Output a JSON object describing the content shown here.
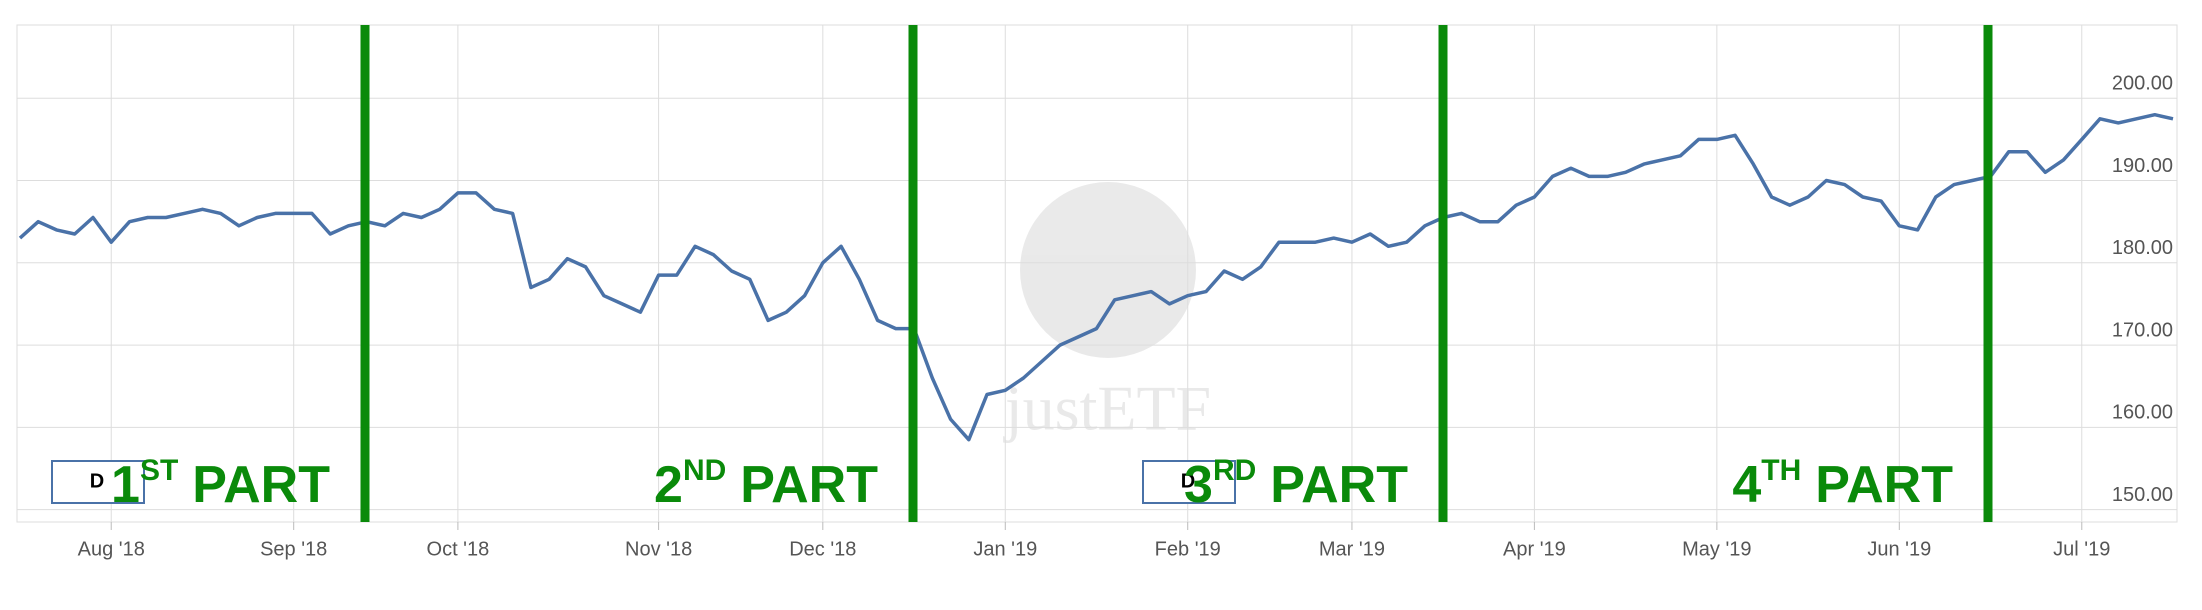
{
  "chart_data": {
    "type": "line",
    "categories": [
      null,
      null,
      null,
      null,
      null,
      "Aug '18",
      null,
      null,
      null,
      null,
      null,
      null,
      null,
      null,
      null,
      "Sep '18",
      null,
      null,
      null,
      null,
      null,
      null,
      null,
      null,
      "Oct '18",
      null,
      null,
      null,
      null,
      null,
      null,
      null,
      null,
      null,
      null,
      "Nov '18",
      null,
      null,
      null,
      null,
      null,
      null,
      null,
      null,
      "Dec '18",
      null,
      null,
      null,
      null,
      null,
      null,
      null,
      null,
      null,
      "Jan '19",
      null,
      null,
      null,
      null,
      null,
      null,
      null,
      null,
      null,
      "Feb '19",
      null,
      null,
      null,
      null,
      null,
      null,
      null,
      null,
      "Mar '19",
      null,
      null,
      null,
      null,
      null,
      null,
      null,
      null,
      null,
      "Apr '19",
      null,
      null,
      null,
      null,
      null,
      null,
      null,
      null,
      null,
      "May '19",
      null,
      null,
      null,
      null,
      null,
      null,
      null,
      null,
      null,
      "Jun '19",
      null,
      null,
      null,
      null,
      null,
      null,
      null,
      null,
      null,
      "Jul '19",
      null,
      null,
      null,
      null,
      null
    ],
    "series": [
      {
        "color": "#4a72a8",
        "values": [
          183,
          185,
          184,
          183.5,
          185.5,
          182.5,
          185,
          185.5,
          185.5,
          186,
          186.5,
          186,
          184.5,
          185.5,
          186,
          186,
          186,
          183.5,
          184.5,
          185,
          184.5,
          186,
          185.5,
          186.5,
          188.5,
          188.5,
          186.5,
          186,
          177,
          178,
          180.5,
          179.5,
          176,
          175,
          174,
          178.5,
          178.5,
          182,
          181,
          179,
          178,
          173,
          174,
          176,
          180,
          182,
          178,
          173,
          172,
          172,
          166,
          161,
          158.5,
          164,
          164.5,
          166,
          168,
          170,
          171,
          172,
          175.5,
          176,
          176.5,
          175,
          176,
          176.5,
          179,
          178,
          179.5,
          182.5,
          182.5,
          182.5,
          183,
          182.5,
          183.5,
          182,
          182.5,
          184.5,
          185.5,
          186,
          185,
          185,
          187,
          188,
          190.5,
          191.5,
          190.5,
          190.5,
          191,
          192,
          192.5,
          193,
          195,
          195,
          195.5,
          192,
          188,
          187,
          188,
          190,
          189.5,
          188,
          187.5,
          184.5,
          184,
          188,
          189.5,
          190,
          190.5,
          193.5,
          193.5,
          191,
          192.5,
          195,
          197.5,
          197,
          197.5,
          198,
          197.5
        ]
      }
    ],
    "ylim": [
      148.5,
      208.9
    ],
    "yticks": [
      {
        "value": 150,
        "label": "150.00"
      },
      {
        "value": 160,
        "label": "160.00"
      },
      {
        "value": 170,
        "label": "170.00"
      },
      {
        "value": 180,
        "label": "180.00"
      },
      {
        "value": 190,
        "label": "190.00"
      },
      {
        "value": 200,
        "label": "200.00"
      }
    ],
    "grid": true,
    "annotations": [
      {
        "number": "1",
        "suffix": "ST",
        "text": "PART"
      },
      {
        "number": "2",
        "suffix": "ND",
        "text": "PART"
      },
      {
        "number": "3",
        "suffix": "RD",
        "text": "PART"
      },
      {
        "number": "4",
        "suffix": "TH",
        "text": "PART"
      }
    ],
    "flags": [
      "D",
      "D"
    ],
    "watermark": "justETF"
  }
}
